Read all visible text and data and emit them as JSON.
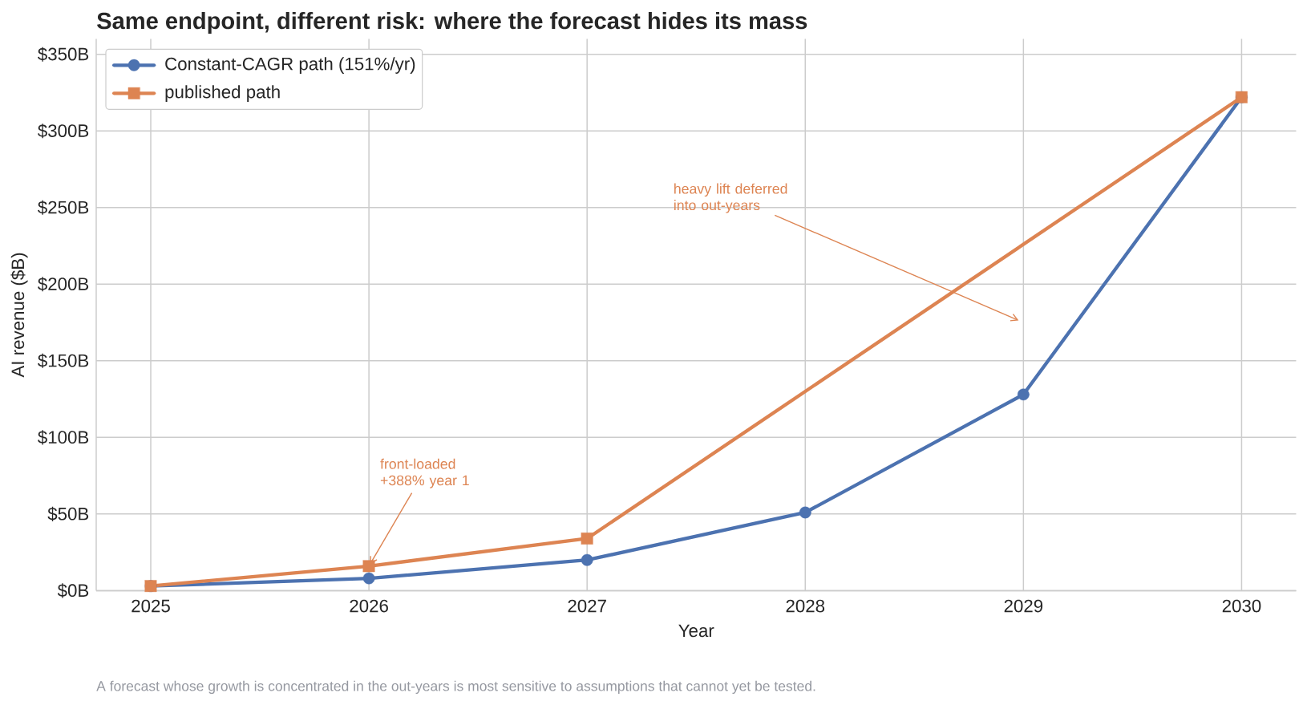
{
  "chart_data": {
    "type": "line",
    "title": "Same endpoint, different risk: where the forecast hides its mass",
    "xlabel": "Year",
    "ylabel": "AI revenue ($B)",
    "x": [
      2025,
      2026,
      2027,
      2028,
      2029,
      2030
    ],
    "series": [
      {
        "name": "Constant-CAGR path (151%/yr)",
        "color": "#4c72b0",
        "marker": "circle",
        "values": [
          3,
          8,
          20,
          51,
          128,
          322
        ]
      },
      {
        "name": "published path",
        "color": "#dd8452",
        "marker": "square",
        "x": [
          2025,
          2026,
          2027,
          2030
        ],
        "values": [
          3,
          16,
          34,
          322
        ]
      }
    ],
    "xlim": [
      2024.75,
      2030.25
    ],
    "xticks": [
      2025,
      2026,
      2027,
      2028,
      2029,
      2030
    ],
    "ylim": [
      0,
      360
    ],
    "yticks": [
      {
        "value": 0,
        "label": "$0B"
      },
      {
        "value": 50,
        "label": "$50B"
      },
      {
        "value": 100,
        "label": "$100B"
      },
      {
        "value": 150,
        "label": "$150B"
      },
      {
        "value": 200,
        "label": "$200B"
      },
      {
        "value": 250,
        "label": "$250B"
      },
      {
        "value": 300,
        "label": "$300B"
      },
      {
        "value": 350,
        "label": "$350B"
      }
    ],
    "grid": true,
    "legend": "top left",
    "line_style": "solid",
    "annotations": [
      {
        "text": "front-loaded +388% year 1",
        "x": 2026,
        "y": 16
      },
      "heavy lift deferred into out-years",
      "A forecast whose growth is concentrated in the out-years is most sensitive to assumptions that cannot yet be tested."
    ]
  }
}
